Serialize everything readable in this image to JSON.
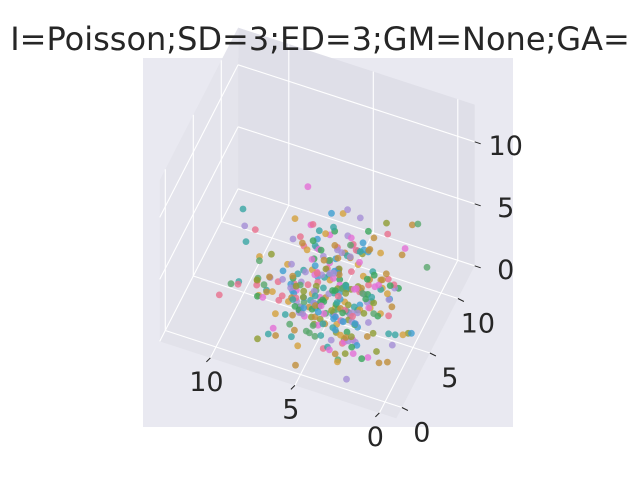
{
  "chart_data": {
    "type": "scatter",
    "title": "I=Poisson;SD=3;ED=3;GM=None;GA=",
    "axes": {
      "x": {
        "ticks": [
          "0",
          "5",
          "10"
        ],
        "range": [
          -1,
          13
        ]
      },
      "y": {
        "ticks": [
          "0",
          "5",
          "10"
        ],
        "range": [
          -1,
          13
        ]
      },
      "z": {
        "ticks": [
          "0",
          "5",
          "10"
        ],
        "range": [
          0,
          13
        ]
      }
    },
    "grid": true,
    "projection": "3d",
    "palette": [
      "#e8718d",
      "#c08f3a",
      "#8e9c32",
      "#3ba55d",
      "#3aa6a4",
      "#3e9fd1",
      "#a58fd6",
      "#e46fd6",
      "#d4a13c",
      "#5aa86d"
    ],
    "point_count": 340,
    "distribution": "Poisson",
    "seed": 3
  }
}
